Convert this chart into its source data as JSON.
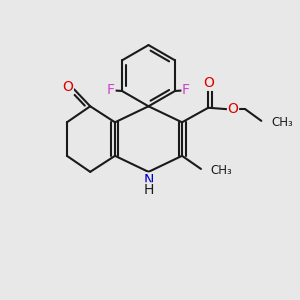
{
  "background_color": "#e8e8e8",
  "bond_color": "#1a1a1a",
  "bond_width": 1.5,
  "atom_colors": {
    "F": "#cc44cc",
    "O": "#dd0000",
    "N": "#0000cc",
    "C": "#1a1a1a",
    "H": "#1a1a1a"
  },
  "font_size": 9,
  "fig_size": [
    3.0,
    3.0
  ],
  "dpi": 100
}
